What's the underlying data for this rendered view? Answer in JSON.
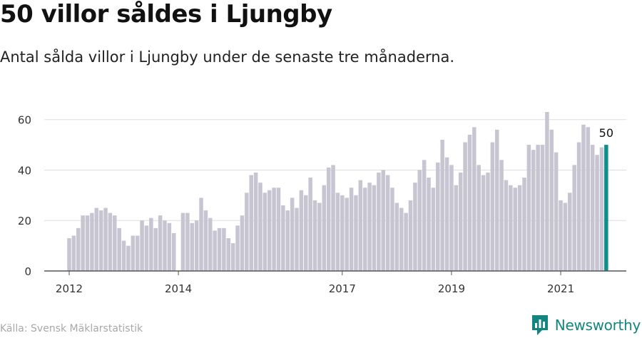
{
  "title": "50 villor såldes i Ljungby",
  "subtitle": "Antal sålda villor i Ljungby under de senaste tre månaderna.",
  "source": "Källa: Svensk Mäklarstatistik",
  "brand": {
    "name": "Newsworthy",
    "color": "#13857f"
  },
  "chart_data": {
    "type": "bar",
    "title": "",
    "xlabel": "",
    "ylabel": "",
    "ylim": [
      0,
      65
    ],
    "y_ticks": [
      0,
      20,
      40,
      60
    ],
    "x_ticks": [
      {
        "label": "2012",
        "index": 0
      },
      {
        "label": "2014",
        "index": 24
      },
      {
        "label": "2017",
        "index": 60
      },
      {
        "label": "2019",
        "index": 84
      },
      {
        "label": "2021",
        "index": 108
      }
    ],
    "values": [
      13,
      14,
      17,
      22,
      22,
      23,
      25,
      24,
      25,
      23,
      22,
      17,
      12,
      10,
      14,
      14,
      20,
      18,
      21,
      17,
      22,
      20,
      19,
      15,
      null,
      23,
      23,
      19,
      20,
      29,
      24,
      21,
      16,
      17,
      17,
      13,
      11,
      18,
      22,
      31,
      38,
      39,
      35,
      31,
      32,
      33,
      33,
      26,
      24,
      29,
      25,
      32,
      30,
      37,
      28,
      27,
      34,
      41,
      42,
      31,
      30,
      29,
      33,
      30,
      36,
      33,
      35,
      34,
      39,
      40,
      38,
      33,
      27,
      25,
      23,
      28,
      35,
      40,
      44,
      37,
      33,
      43,
      52,
      45,
      42,
      34,
      39,
      51,
      54,
      57,
      42,
      38,
      39,
      51,
      56,
      44,
      36,
      34,
      33,
      34,
      37,
      50,
      48,
      50,
      50,
      63,
      56,
      47,
      28,
      27,
      31,
      42,
      51,
      58,
      57,
      50,
      46,
      49,
      50
    ],
    "highlight_index": 118,
    "highlight_label": "50",
    "bar_color": "#c6c5d1",
    "highlight_color": "#0f8f8c",
    "grid_color": "#dedede",
    "axis_color": "#555555"
  }
}
